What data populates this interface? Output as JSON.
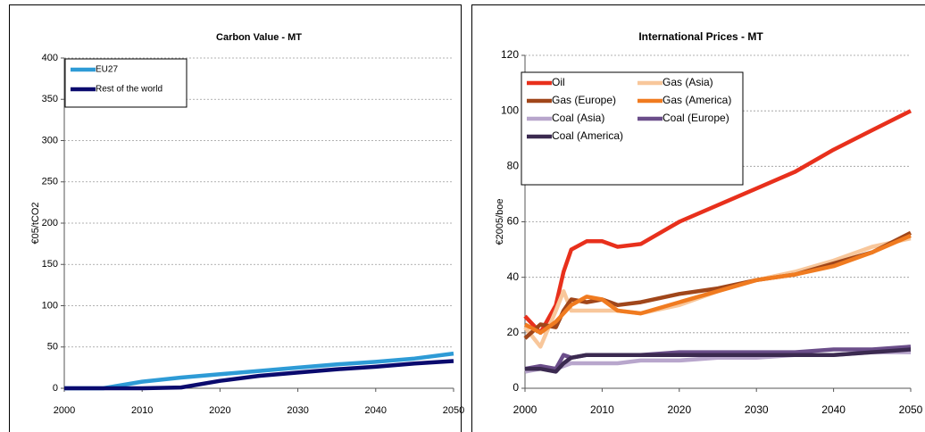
{
  "chart_data": [
    {
      "type": "line",
      "title": "Carbon Value - MT",
      "y_label": "€05/tCO2",
      "x": [
        2000,
        2005,
        2010,
        2015,
        2020,
        2025,
        2030,
        2035,
        2040,
        2045,
        2050
      ],
      "series": [
        {
          "name": "EU27",
          "color": "#2e9bd6",
          "values": [
            0,
            0,
            8,
            13,
            17,
            21,
            25,
            29,
            32,
            36,
            42
          ]
        },
        {
          "name": "Rest of the world",
          "color": "#0a0a6e",
          "values": [
            0,
            0,
            0,
            1,
            9,
            15,
            19,
            23,
            26,
            30,
            33
          ]
        }
      ],
      "xlim": [
        2000,
        2050
      ],
      "xticks": [
        2000,
        2010,
        2020,
        2030,
        2040,
        2050
      ],
      "ylim": [
        0,
        400
      ],
      "yticks": [
        0,
        50,
        100,
        150,
        200,
        250,
        300,
        350,
        400
      ],
      "grid": true,
      "legend": "upper left"
    },
    {
      "type": "line",
      "title": "International Prices - MT",
      "y_label": "€2005/boe",
      "x": [
        2000,
        2002,
        2004,
        2005,
        2006,
        2008,
        2010,
        2012,
        2015,
        2020,
        2025,
        2030,
        2035,
        2040,
        2045,
        2050
      ],
      "series": [
        {
          "name": "Oil",
          "color": "#e8301c",
          "values": [
            26,
            20,
            30,
            42,
            50,
            53,
            53,
            51,
            52,
            60,
            66,
            72,
            78,
            86,
            93,
            100
          ]
        },
        {
          "name": "Gas (Asia)",
          "color": "#f8c79b",
          "values": [
            22,
            15,
            28,
            35,
            28,
            28,
            28,
            28,
            27,
            30,
            35,
            39,
            42,
            46,
            51,
            54
          ]
        },
        {
          "name": "Gas (Europe)",
          "color": "#a0461a",
          "values": [
            18,
            23,
            22,
            28,
            32,
            31,
            32,
            30,
            31,
            34,
            36,
            39,
            41,
            45,
            49,
            56
          ]
        },
        {
          "name": "Gas (America)",
          "color": "#f07b20",
          "values": [
            23,
            20,
            24,
            27,
            30,
            33,
            32,
            28,
            27,
            31,
            35,
            39,
            41,
            44,
            49,
            55
          ]
        },
        {
          "name": "Coal (Asia)",
          "color": "#b8a6cc",
          "values": [
            6,
            7,
            7,
            8,
            9,
            9,
            9,
            9,
            10,
            10,
            11,
            11,
            12,
            12,
            13,
            13
          ]
        },
        {
          "name": "Coal (Europe)",
          "color": "#6b4e8a",
          "values": [
            7,
            8,
            7,
            12,
            11,
            12,
            12,
            12,
            12,
            13,
            13,
            13,
            13,
            14,
            14,
            15
          ]
        },
        {
          "name": "Coal (America)",
          "color": "#3b2a50",
          "values": [
            7,
            7,
            6,
            9,
            11,
            12,
            12,
            12,
            12,
            12,
            12,
            12,
            12,
            12,
            13,
            14
          ]
        }
      ],
      "xlim": [
        2000,
        2050
      ],
      "xticks": [
        2000,
        2010,
        2020,
        2030,
        2040,
        2050
      ],
      "ylim": [
        0,
        120
      ],
      "yticks": [
        0,
        20,
        40,
        60,
        80,
        100,
        120
      ],
      "grid": true,
      "legend": "upper left"
    }
  ]
}
